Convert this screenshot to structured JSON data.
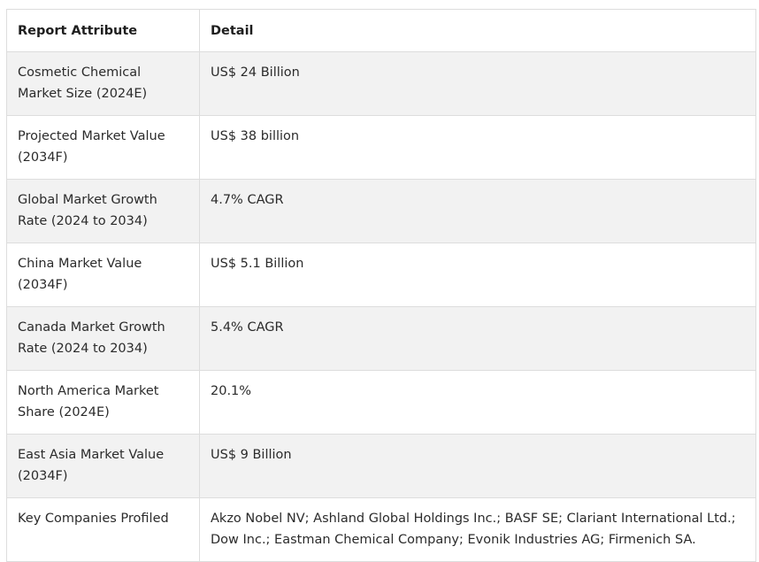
{
  "table": {
    "headers": [
      "Report Attribute",
      "Detail"
    ],
    "rows": [
      {
        "attribute": "Cosmetic Chemical Market Size (2024E)",
        "detail": "US$ 24 Billion"
      },
      {
        "attribute": "Projected Market Value (2034F)",
        "detail": "US$ 38 billion"
      },
      {
        "attribute": "Global Market Growth Rate (2024 to 2034)",
        "detail": "4.7% CAGR"
      },
      {
        "attribute": "China Market Value (2034F)",
        "detail": "US$ 5.1 Billion"
      },
      {
        "attribute": "Canada Market Growth Rate (2024 to 2034)",
        "detail": "5.4% CAGR"
      },
      {
        "attribute": "North America Market Share (2024E)",
        "detail": "20.1%"
      },
      {
        "attribute": "East Asia Market Value (2034F)",
        "detail": "US$ 9 Billion"
      },
      {
        "attribute": "Key Companies Profiled",
        "detail": "Akzo Nobel NV; Ashland Global Holdings Inc.; BASF SE; Clariant International Ltd.; Dow Inc.; Eastman Chemical Company; Evonik Industries AG; Firmenich SA."
      }
    ]
  }
}
